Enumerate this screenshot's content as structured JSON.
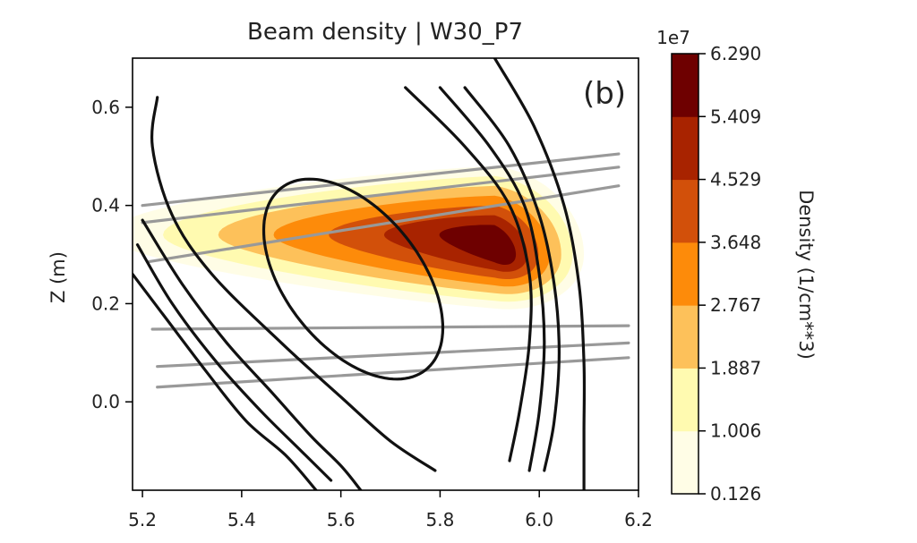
{
  "chart_data": {
    "type": "contourf",
    "title": "Beam density | W30_P7",
    "panel_label": "(b)",
    "xlabel": "",
    "ylabel": "Z (m)",
    "xlim": [
      5.18,
      6.2
    ],
    "ylim": [
      -0.18,
      0.7
    ],
    "x_ticks": [
      "5.2",
      "5.4",
      "5.6",
      "5.8",
      "6.0",
      "6.2"
    ],
    "x_tick_values": [
      5.2,
      5.4,
      5.6,
      5.8,
      6.0,
      6.2
    ],
    "y_ticks": [
      "0.0",
      "0.2",
      "0.4",
      "0.6"
    ],
    "y_tick_values": [
      0.0,
      0.2,
      0.4,
      0.6
    ],
    "colorbar": {
      "label": "Density (1/cm**3)",
      "exponent": "1e7",
      "levels": [
        "0.126",
        "1.006",
        "1.887",
        "2.767",
        "3.648",
        "4.529",
        "5.409",
        "6.290"
      ],
      "colors": [
        "#fffde6",
        "#fffab0",
        "#fdc15a",
        "#fd8b0a",
        "#d2500a",
        "#a82300",
        "#6e0000"
      ]
    },
    "density_peak": {
      "x": 5.91,
      "y": 0.3,
      "value": 6.29
    },
    "flux_surfaces": {
      "color": "#111111",
      "curves": [
        {
          "type": "ellipse",
          "cx": 5.625,
          "cy": 0.25,
          "a": 0.38,
          "b": 0.22,
          "angle_deg": -52
        },
        {
          "points": [
            [
              5.23,
              0.62
            ],
            [
              5.22,
              0.52
            ],
            [
              5.26,
              0.38
            ],
            [
              5.34,
              0.26
            ],
            [
              5.48,
              0.12
            ],
            [
              5.6,
              0.01
            ],
            [
              5.7,
              -0.08
            ],
            [
              5.79,
              -0.14
            ]
          ]
        },
        {
          "points": [
            [
              5.2,
              0.37
            ],
            [
              5.28,
              0.24
            ],
            [
              5.37,
              0.12
            ],
            [
              5.46,
              0.02
            ],
            [
              5.54,
              -0.07
            ],
            [
              5.6,
              -0.13
            ],
            [
              5.64,
              -0.18
            ]
          ]
        },
        {
          "points": [
            [
              5.19,
              0.32
            ],
            [
              5.26,
              0.2
            ],
            [
              5.35,
              0.08
            ],
            [
              5.44,
              -0.02
            ],
            [
              5.52,
              -0.1
            ],
            [
              5.58,
              -0.16
            ]
          ]
        },
        {
          "points": [
            [
              5.18,
              0.26
            ],
            [
              5.24,
              0.18
            ],
            [
              5.33,
              0.06
            ],
            [
              5.41,
              -0.04
            ],
            [
              5.49,
              -0.11
            ],
            [
              5.55,
              -0.18
            ]
          ]
        },
        {
          "points": [
            [
              5.73,
              0.64
            ],
            [
              5.85,
              0.52
            ],
            [
              5.94,
              0.4
            ],
            [
              5.98,
              0.26
            ],
            [
              5.98,
              0.12
            ],
            [
              5.96,
              -0.02
            ],
            [
              5.94,
              -0.12
            ]
          ]
        },
        {
          "points": [
            [
              5.8,
              0.64
            ],
            [
              5.9,
              0.52
            ],
            [
              5.97,
              0.4
            ],
            [
              6.0,
              0.26
            ],
            [
              6.01,
              0.12
            ],
            [
              6.0,
              -0.02
            ],
            [
              5.98,
              -0.14
            ]
          ]
        },
        {
          "points": [
            [
              5.85,
              0.64
            ],
            [
              5.94,
              0.52
            ],
            [
              6.0,
              0.38
            ],
            [
              6.03,
              0.24
            ],
            [
              6.04,
              0.1
            ],
            [
              6.03,
              -0.04
            ],
            [
              6.01,
              -0.14
            ]
          ]
        },
        {
          "points": [
            [
              5.91,
              0.7
            ],
            [
              5.99,
              0.56
            ],
            [
              6.05,
              0.4
            ],
            [
              6.08,
              0.24
            ],
            [
              6.09,
              0.08
            ],
            [
              6.09,
              -0.06
            ],
            [
              6.09,
              -0.18
            ]
          ]
        }
      ]
    },
    "beam_lines": {
      "color": "#999999",
      "lines": [
        [
          [
            5.2,
            0.4
          ],
          [
            6.16,
            0.505
          ]
        ],
        [
          [
            5.2,
            0.365
          ],
          [
            6.16,
            0.478
          ]
        ],
        [
          [
            5.21,
            0.285
          ],
          [
            6.16,
            0.44
          ]
        ],
        [
          [
            5.22,
            0.148
          ],
          [
            6.18,
            0.155
          ]
        ],
        [
          [
            5.23,
            0.072
          ],
          [
            6.18,
            0.12
          ]
        ],
        [
          [
            5.23,
            0.03
          ],
          [
            6.18,
            0.09
          ]
        ]
      ]
    }
  }
}
